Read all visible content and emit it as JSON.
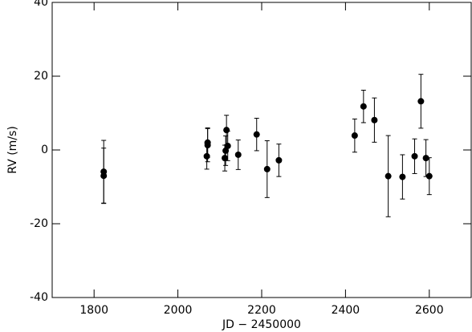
{
  "chart_data": {
    "type": "scatter",
    "x_label": "JD − 2450000",
    "y_label": "RV (m/s)",
    "x": [
      1823,
      1823,
      2071,
      2071,
      2069,
      2112,
      2114,
      2119,
      2116,
      2144,
      2188,
      2213,
      2241,
      2422,
      2443,
      2469,
      2502,
      2536,
      2565,
      2580,
      2592,
      2600
    ],
    "values": [
      -5.9,
      -7.0,
      2.0,
      1.3,
      -1.7,
      -2.2,
      -0.2,
      1.1,
      5.4,
      -1.3,
      4.2,
      -5.2,
      -2.8,
      3.9,
      11.8,
      8.1,
      -7.1,
      -7.3,
      -1.7,
      13.2,
      -2.2,
      -7.1
    ],
    "errors": [
      8.5,
      7.5,
      4.0,
      4.5,
      3.5,
      3.5,
      4.0,
      4.0,
      4.0,
      4.0,
      4.4,
      7.7,
      4.4,
      4.5,
      4.4,
      6.0,
      11.0,
      6.0,
      4.7,
      7.3,
      5.0,
      5.0
    ],
    "color": "#000000",
    "xlim": [
      1700,
      2700
    ],
    "xticks": [
      1800,
      2000,
      2200,
      2400,
      2600
    ],
    "ylim": [
      -40,
      40
    ],
    "yticks": [
      -40,
      -20,
      0,
      20,
      40
    ]
  }
}
